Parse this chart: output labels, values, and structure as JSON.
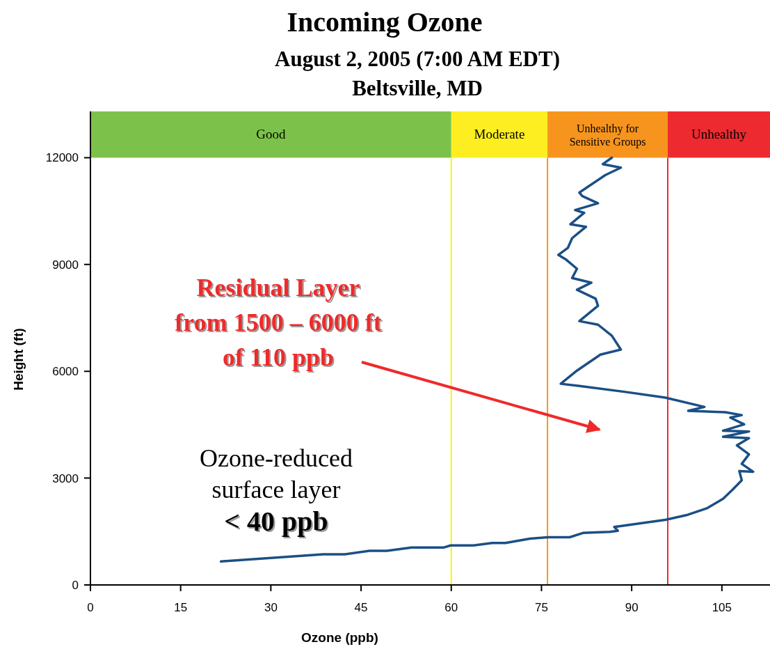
{
  "chart_data": {
    "type": "line",
    "title": "Incoming Ozone",
    "subtitle": "August 2, 2005 (7:00 AM EDT)\nBeltsville, MD",
    "xlabel": "Ozone (ppb)",
    "ylabel": "Height (ft)",
    "xlim": [
      0,
      113
    ],
    "xticks": [
      0,
      15,
      30,
      45,
      60,
      75,
      90,
      105
    ],
    "ylim": [
      0,
      13300
    ],
    "yticks": [
      0,
      3000,
      6000,
      9000,
      12000
    ],
    "grid": false,
    "marker": "none",
    "line_style": "solid",
    "series": [
      {
        "color": "#1b4f85",
        "x": [
          21.7,
          38.7,
          42.3,
          46.4,
          49.3,
          53.4,
          58.7,
          59.9,
          63.7,
          66.8,
          69.0,
          73.1,
          76.1,
          79.7,
          81.9,
          86.4,
          87.7,
          87.1,
          95.6,
          99.1,
          102.6,
          105.2,
          106.8,
          108.3,
          107.9,
          110.2,
          108.3,
          109.5,
          107.5,
          109.5,
          105.2,
          109.5,
          105.2,
          108.7,
          106.4,
          108.3,
          105.6,
          99.4,
          102.1,
          95.6,
          89.0,
          81.3,
          78.2,
          80.9,
          84.8,
          88.2,
          86.7,
          84.4,
          81.3,
          84.4,
          84.0,
          80.9,
          83.3,
          80.1,
          80.9,
          79.0,
          77.8,
          79.4,
          80.1,
          82.4,
          79.8,
          82.1,
          80.6,
          84.4,
          81.8,
          81.3,
          85.6,
          88.2,
          85.2,
          86.7
        ],
        "values": [
          660,
          860,
          860,
          960,
          960,
          1050,
          1050,
          1110,
          1110,
          1180,
          1180,
          1300,
          1340,
          1340,
          1460,
          1490,
          1520,
          1630,
          1830,
          1960,
          2160,
          2420,
          2680,
          2940,
          3200,
          3180,
          3400,
          3670,
          3920,
          4120,
          4160,
          4310,
          4330,
          4510,
          4700,
          4770,
          4850,
          4890,
          5000,
          5260,
          5420,
          5590,
          5650,
          6020,
          6470,
          6610,
          7000,
          7310,
          7410,
          7840,
          8040,
          8290,
          8490,
          8620,
          8880,
          9150,
          9270,
          9470,
          9740,
          10060,
          10130,
          10450,
          10530,
          10720,
          10920,
          11020,
          11510,
          11720,
          11820,
          12000
        ]
      }
    ],
    "bands": [
      {
        "axis": "x",
        "from": 0,
        "to": 60,
        "label": "Good",
        "color": "#7cc24a"
      },
      {
        "axis": "x",
        "from": 60,
        "to": 76,
        "label": "Moderate",
        "color": "#fcee21"
      },
      {
        "axis": "x",
        "from": 76,
        "to": 96,
        "label": "Unhealthy for\nSensitive Groups",
        "color": "#f7941d"
      },
      {
        "axis": "x",
        "from": 96,
        "to": 113,
        "label": "Unhealthy",
        "color": "#ed2a2f"
      }
    ],
    "ref_lines": [
      {
        "axis": "x",
        "value": 60,
        "color": "#fcee21"
      },
      {
        "axis": "x",
        "value": 76,
        "color": "#f7941d"
      },
      {
        "axis": "x",
        "value": 96,
        "color": "#ed2a2f"
      }
    ],
    "annotations": [
      "Residual Layer\nfrom 1500 – 6000 ft\nof 110 ppb",
      "Ozone-reduced\nsurface layer",
      "< 40 ppb"
    ]
  }
}
